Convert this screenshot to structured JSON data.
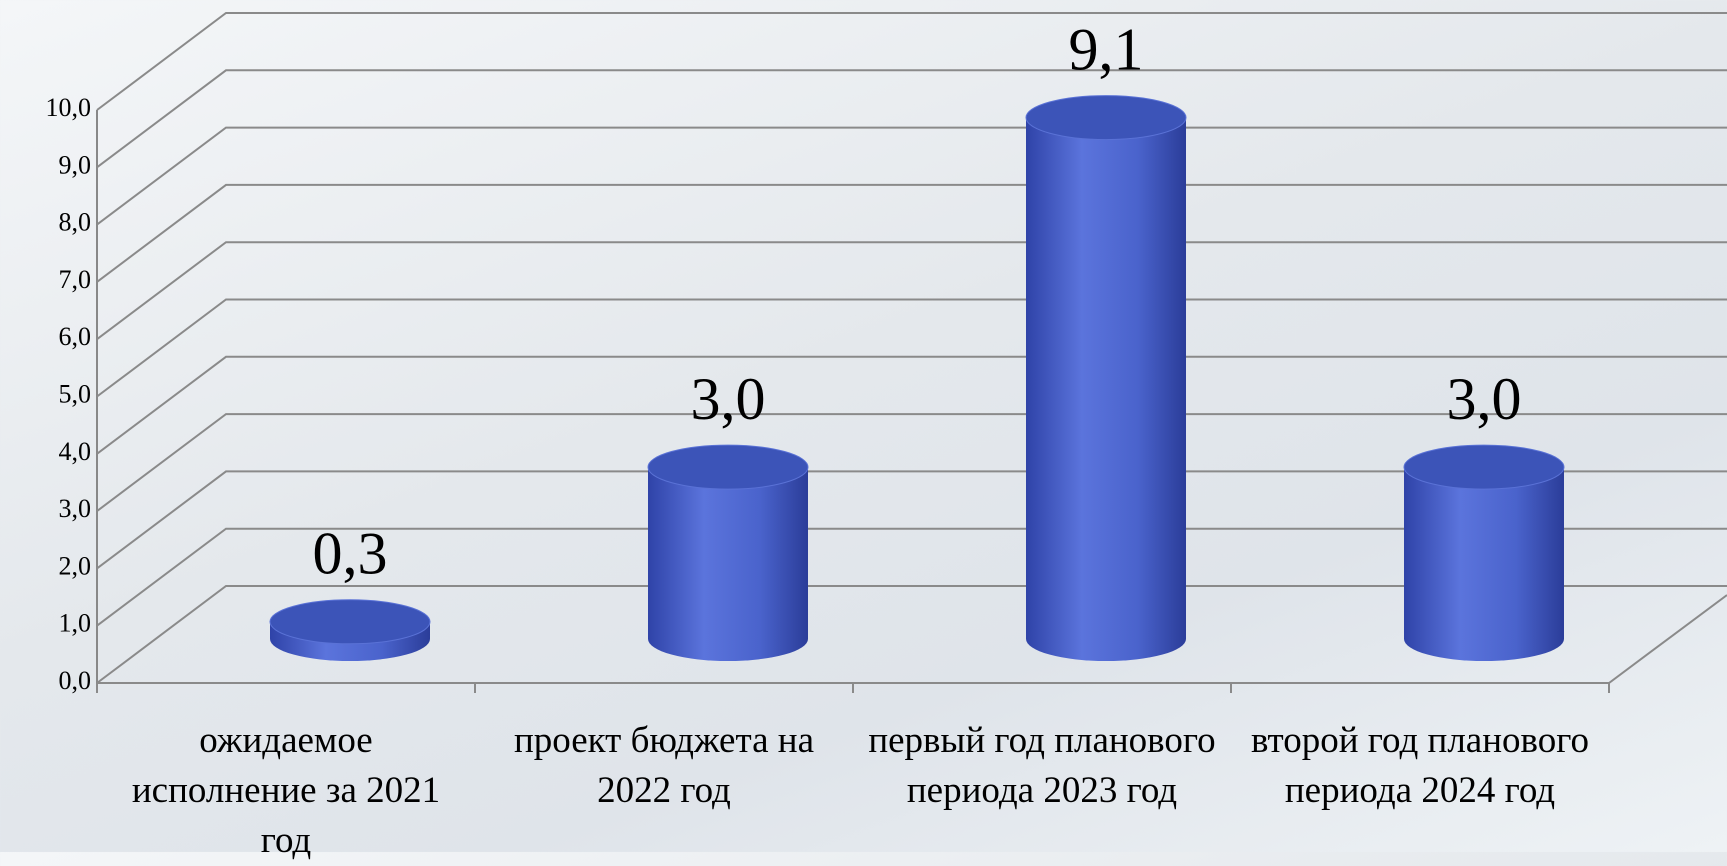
{
  "chart_data": {
    "type": "bar3d",
    "categories": [
      "ожидаемое исполнение за 2021 год",
      "проект бюджета на 2022 год",
      "первый год планового периода 2023 год",
      "второй год планового периода 2024 год"
    ],
    "values": [
      0.3,
      3.0,
      9.1,
      3.0
    ],
    "value_labels": [
      "0,3",
      "3,0",
      "9,1",
      "3,0"
    ],
    "color": "#4a63cc",
    "ylim": [
      0,
      10
    ],
    "yticks": [
      {
        "value": 0,
        "label": "0,0"
      },
      {
        "value": 1,
        "label": "1,0"
      },
      {
        "value": 2,
        "label": "2,0"
      },
      {
        "value": 3,
        "label": "3,0"
      },
      {
        "value": 4,
        "label": "4,0"
      },
      {
        "value": 5,
        "label": "5,0"
      },
      {
        "value": 6,
        "label": "6,0"
      },
      {
        "value": 7,
        "label": "7,0"
      },
      {
        "value": 8,
        "label": "8,0"
      },
      {
        "value": 9,
        "label": "9,0"
      },
      {
        "value": 10,
        "label": "10,0"
      }
    ],
    "grid": true
  }
}
